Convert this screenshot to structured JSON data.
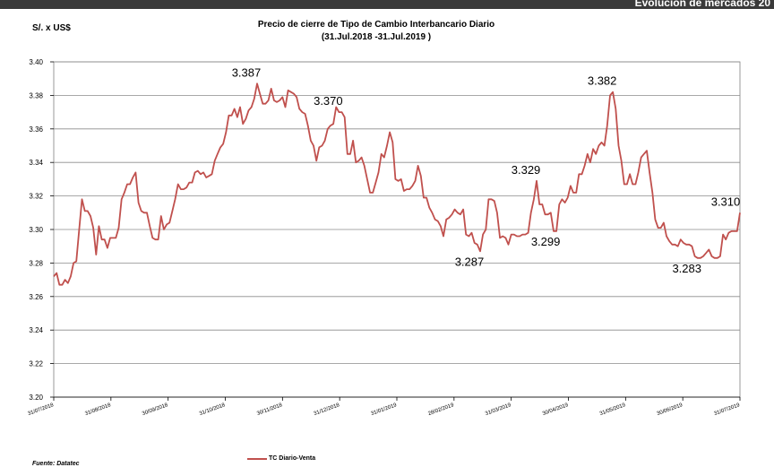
{
  "banner": {
    "text": "Evolución de mercados 20"
  },
  "chart_data": {
    "type": "line",
    "title": "Precio de cierre de Tipo de Cambio Interbancario Diario",
    "subtitle": "(31.Jul.2018 -31.Jul.2019 )",
    "ylabel": "S/. x US$",
    "ylim": [
      3.2,
      3.4
    ],
    "yticks": [
      "3.20",
      "3.22",
      "3.24",
      "3.26",
      "3.28",
      "3.30",
      "3.32",
      "3.34",
      "3.36",
      "3.38",
      "3.40"
    ],
    "xticks": [
      "31/07/2018",
      "31/08/2018",
      "30/09/2018",
      "31/10/2018",
      "30/11/2018",
      "31/12/2018",
      "31/01/2019",
      "28/02/2019",
      "31/03/2019",
      "30/04/2019",
      "31/05/2019",
      "30/06/2019",
      "31/07/2019"
    ],
    "grid": true,
    "series": [
      {
        "name": "TC Diario-Venta",
        "color": "#c0504d",
        "values": [
          3.272,
          3.274,
          3.267,
          3.267,
          3.27,
          3.268,
          3.272,
          3.28,
          3.281,
          3.3,
          3.318,
          3.311,
          3.311,
          3.308,
          3.301,
          3.285,
          3.302,
          3.294,
          3.294,
          3.289,
          3.295,
          3.295,
          3.295,
          3.301,
          3.318,
          3.322,
          3.327,
          3.327,
          3.331,
          3.334,
          3.316,
          3.311,
          3.31,
          3.31,
          3.302,
          3.295,
          3.294,
          3.294,
          3.308,
          3.3,
          3.303,
          3.304,
          3.311,
          3.318,
          3.327,
          3.324,
          3.324,
          3.325,
          3.328,
          3.328,
          3.334,
          3.335,
          3.333,
          3.334,
          3.331,
          3.332,
          3.333,
          3.341,
          3.345,
          3.349,
          3.351,
          3.358,
          3.368,
          3.368,
          3.372,
          3.367,
          3.373,
          3.363,
          3.366,
          3.371,
          3.373,
          3.378,
          3.387,
          3.381,
          3.375,
          3.375,
          3.377,
          3.384,
          3.377,
          3.376,
          3.377,
          3.379,
          3.373,
          3.383,
          3.382,
          3.381,
          3.379,
          3.372,
          3.37,
          3.369,
          3.362,
          3.353,
          3.35,
          3.341,
          3.349,
          3.35,
          3.353,
          3.36,
          3.362,
          3.363,
          3.373,
          3.37,
          3.37,
          3.367,
          3.345,
          3.345,
          3.353,
          3.34,
          3.341,
          3.343,
          3.338,
          3.33,
          3.322,
          3.322,
          3.328,
          3.334,
          3.345,
          3.343,
          3.35,
          3.358,
          3.352,
          3.33,
          3.329,
          3.33,
          3.323,
          3.324,
          3.324,
          3.326,
          3.329,
          3.338,
          3.332,
          3.319,
          3.319,
          3.313,
          3.31,
          3.306,
          3.305,
          3.302,
          3.296,
          3.306,
          3.307,
          3.309,
          3.312,
          3.31,
          3.309,
          3.312,
          3.297,
          3.296,
          3.298,
          3.292,
          3.291,
          3.287,
          3.297,
          3.3,
          3.318,
          3.318,
          3.317,
          3.31,
          3.295,
          3.296,
          3.295,
          3.291,
          3.297,
          3.297,
          3.296,
          3.296,
          3.297,
          3.297,
          3.298,
          3.31,
          3.318,
          3.329,
          3.315,
          3.315,
          3.309,
          3.309,
          3.31,
          3.299,
          3.299,
          3.315,
          3.318,
          3.316,
          3.319,
          3.326,
          3.322,
          3.322,
          3.333,
          3.333,
          3.338,
          3.345,
          3.34,
          3.348,
          3.345,
          3.35,
          3.352,
          3.35,
          3.362,
          3.38,
          3.382,
          3.372,
          3.35,
          3.341,
          3.327,
          3.327,
          3.333,
          3.327,
          3.327,
          3.334,
          3.343,
          3.345,
          3.347,
          3.334,
          3.322,
          3.306,
          3.301,
          3.301,
          3.304,
          3.296,
          3.293,
          3.291,
          3.291,
          3.29,
          3.294,
          3.292,
          3.291,
          3.291,
          3.29,
          3.284,
          3.283,
          3.283,
          3.284,
          3.286,
          3.288,
          3.284,
          3.283,
          3.283,
          3.284,
          3.297,
          3.294,
          3.298,
          3.299,
          3.299,
          3.299,
          3.31
        ]
      }
    ],
    "annotations": [
      {
        "text": "3.387",
        "x": "31/10/2018",
        "y": 3.387
      },
      {
        "text": "3.370",
        "x": "31/12/2018",
        "y": 3.37
      },
      {
        "text": "3.287",
        "x": "31/03/2019",
        "y": 3.287
      },
      {
        "text": "3.329",
        "x": "30/04/2019",
        "y": 3.329
      },
      {
        "text": "3.299",
        "x": "30/04/2019",
        "y": 3.299
      },
      {
        "text": "3.382",
        "x": "31/05/2019",
        "y": 3.382
      },
      {
        "text": "3.283",
        "x": "30/06/2019",
        "y": 3.283
      },
      {
        "text": "3.310",
        "x": "31/07/2019",
        "y": 3.31
      }
    ],
    "legend_position": "bottom"
  },
  "footer": {
    "source": "Fuente: Datatec"
  }
}
